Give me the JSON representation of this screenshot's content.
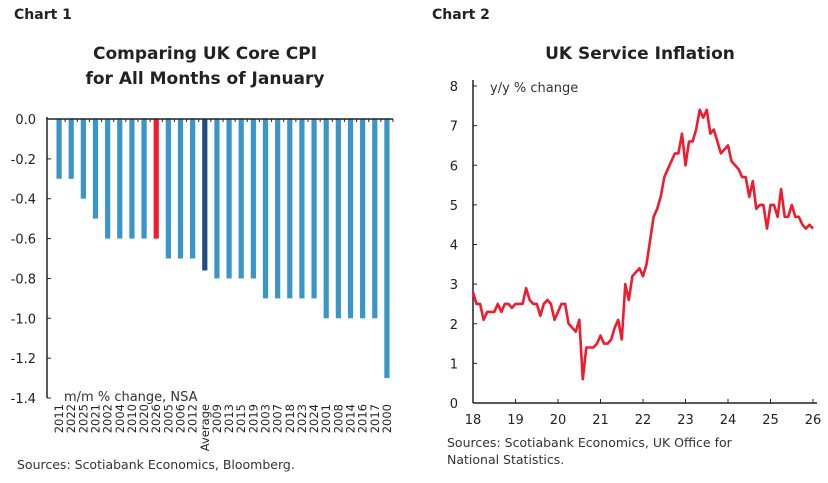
{
  "chart_data": [
    {
      "type": "bar",
      "label": "Chart 1",
      "title": [
        "Comparing UK Core CPI",
        "for All Months of January"
      ],
      "ylabel": "m/m % change, NSA",
      "ylim": [
        -1.4,
        0.0
      ],
      "yticks": [
        "0.0",
        "-0.2",
        "-0.4",
        "-0.6",
        "-0.8",
        "-1.0",
        "-1.2",
        "-1.4"
      ],
      "categories": [
        "2011",
        "2022",
        "2025",
        "2021",
        "2002",
        "2004",
        "2010",
        "2020",
        "2026",
        "2005",
        "2006",
        "2012",
        "Average",
        "2009",
        "2013",
        "2015",
        "2019",
        "2003",
        "2007",
        "2018",
        "2023",
        "2024",
        "2001",
        "2008",
        "2014",
        "2016",
        "2017",
        "2000"
      ],
      "values": [
        -0.3,
        -0.3,
        -0.4,
        -0.5,
        -0.6,
        -0.6,
        -0.6,
        -0.6,
        -0.6,
        -0.7,
        -0.7,
        -0.7,
        -0.76,
        -0.8,
        -0.8,
        -0.8,
        -0.8,
        -0.9,
        -0.9,
        -0.9,
        -0.9,
        -0.9,
        -1.0,
        -1.0,
        -1.0,
        -1.0,
        -1.0,
        -1.3
      ],
      "highlight": {
        "2026": "#ee1c2e",
        "Average": "#1f4e85"
      },
      "bar_color": "#3a95c8",
      "source": "Sources: Scotiabank Economics, Bloomberg."
    },
    {
      "type": "line",
      "label": "Chart 2",
      "title": "UK Service Inflation",
      "ylabel": "y/y % change",
      "ylim": [
        0,
        8
      ],
      "yticks": [
        "0",
        "1",
        "2",
        "3",
        "4",
        "5",
        "6",
        "7",
        "8"
      ],
      "xticks": [
        "18",
        "19",
        "20",
        "21",
        "22",
        "23",
        "24",
        "25",
        "26"
      ],
      "xlim": [
        2018,
        2026
      ],
      "line_color": "#ee1c2e",
      "series": [
        {
          "x": [
            "2018-01",
            "2018-02",
            "2018-03",
            "2018-04",
            "2018-05",
            "2018-06",
            "2018-07",
            "2018-08",
            "2018-09",
            "2018-10",
            "2018-11",
            "2018-12",
            "2019-01",
            "2019-02",
            "2019-03",
            "2019-04",
            "2019-05",
            "2019-06",
            "2019-07",
            "2019-08",
            "2019-09",
            "2019-10",
            "2019-11",
            "2019-12",
            "2020-01",
            "2020-02",
            "2020-03",
            "2020-04",
            "2020-05",
            "2020-06",
            "2020-07",
            "2020-08",
            "2020-09",
            "2020-10",
            "2020-11",
            "2020-12",
            "2021-01",
            "2021-02",
            "2021-03",
            "2021-04",
            "2021-05",
            "2021-06",
            "2021-07",
            "2021-08",
            "2021-09",
            "2021-10",
            "2021-11",
            "2021-12",
            "2022-01",
            "2022-02",
            "2022-03",
            "2022-04",
            "2022-05",
            "2022-06",
            "2022-07",
            "2022-08",
            "2022-09",
            "2022-10",
            "2022-11",
            "2022-12",
            "2023-01",
            "2023-02",
            "2023-03",
            "2023-04",
            "2023-05",
            "2023-06",
            "2023-07",
            "2023-08",
            "2023-09",
            "2023-10",
            "2023-11",
            "2023-12",
            "2024-01",
            "2024-02",
            "2024-03",
            "2024-04",
            "2024-05",
            "2024-06",
            "2024-07",
            "2024-08",
            "2024-09",
            "2024-10",
            "2024-11",
            "2024-12",
            "2025-01",
            "2025-02",
            "2025-03",
            "2025-04",
            "2025-05",
            "2025-06",
            "2025-07",
            "2025-08",
            "2025-09",
            "2025-10",
            "2025-11",
            "2025-12",
            "2026-01"
          ],
          "y": [
            2.8,
            2.5,
            2.5,
            2.1,
            2.3,
            2.3,
            2.3,
            2.5,
            2.3,
            2.5,
            2.5,
            2.4,
            2.5,
            2.5,
            2.5,
            2.9,
            2.6,
            2.5,
            2.5,
            2.2,
            2.5,
            2.6,
            2.5,
            2.1,
            2.3,
            2.5,
            2.5,
            2.0,
            1.9,
            1.8,
            2.1,
            0.6,
            1.4,
            1.4,
            1.4,
            1.5,
            1.7,
            1.5,
            1.5,
            1.6,
            1.9,
            2.1,
            1.6,
            3.0,
            2.6,
            3.2,
            3.3,
            3.4,
            3.2,
            3.5,
            4.1,
            4.7,
            4.9,
            5.2,
            5.7,
            5.9,
            6.1,
            6.3,
            6.3,
            6.8,
            6.0,
            6.6,
            6.6,
            6.9,
            7.4,
            7.2,
            7.4,
            6.8,
            6.9,
            6.6,
            6.3,
            6.4,
            6.5,
            6.1,
            6.0,
            5.9,
            5.7,
            5.7,
            5.2,
            5.6,
            4.9,
            5.0,
            5.0,
            4.4,
            5.0,
            5.0,
            4.7,
            5.4,
            4.7,
            4.7,
            5.0,
            4.7,
            4.7,
            4.5,
            4.4,
            4.5,
            4.4
          ]
        }
      ],
      "source": [
        "Sources: Scotiabank Economics, UK Office for",
        "National Statistics."
      ]
    }
  ]
}
